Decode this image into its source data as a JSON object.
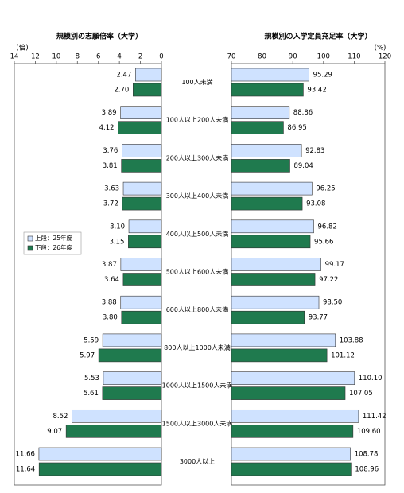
{
  "chart_data": [
    {
      "type": "bar",
      "orientation": "horizontal",
      "title": "規模別の志願倍率（大学）",
      "xlabel": "(倍)",
      "categories": [
        "100人未満",
        "100人以上200人未満",
        "200人以上300人未満",
        "300人以上400人未満",
        "400人以上500人未満",
        "500人以上600人未満",
        "600人以上800人未満",
        "800人以上1000人未満",
        "1000人以上1500人未満",
        "1500人以上3000人未満",
        "3000人以上"
      ],
      "series": [
        {
          "name": "上段：25年度",
          "color": "#cfe2ff",
          "values": [
            2.47,
            3.89,
            3.76,
            3.63,
            3.1,
            3.87,
            3.88,
            5.59,
            5.53,
            8.52,
            11.66
          ],
          "value_labels": [
            "2.47",
            "3.89",
            "3.76",
            "3.63",
            "3.10",
            "3.87",
            "3.88",
            "5.59",
            "5.53",
            "8.52",
            "11.66"
          ]
        },
        {
          "name": "下段：26年度",
          "color": "#1f7a4e",
          "values": [
            2.7,
            4.12,
            3.81,
            3.72,
            3.15,
            3.64,
            3.8,
            5.97,
            5.61,
            9.07,
            11.64
          ],
          "value_labels": [
            "2.70",
            "4.12",
            "3.81",
            "3.72",
            "3.15",
            "3.64",
            "3.80",
            "5.97",
            "5.61",
            "9.07",
            "11.64"
          ]
        }
      ],
      "xlim": [
        14,
        0
      ],
      "xticks": [
        14,
        12,
        10,
        8,
        6,
        4,
        2,
        0
      ],
      "legend": "left"
    },
    {
      "type": "bar",
      "orientation": "horizontal",
      "title": "規模別の入学定員充足率（大学）",
      "xlabel": "(%)",
      "series": [
        {
          "color": "#cfe2ff",
          "values": [
            95.29,
            88.86,
            92.83,
            96.25,
            96.82,
            99.17,
            98.5,
            103.88,
            110.1,
            111.42,
            108.78
          ],
          "value_labels": [
            "95.29",
            "88.86",
            "92.83",
            "96.25",
            "96.82",
            "99.17",
            "98.50",
            "103.88",
            "110.10",
            "111.42",
            "108.78"
          ]
        },
        {
          "color": "#1f7a4e",
          "values": [
            93.42,
            86.95,
            89.04,
            93.08,
            95.66,
            97.22,
            93.77,
            101.12,
            107.05,
            109.6,
            108.96
          ],
          "value_labels": [
            "93.42",
            "86.95",
            "89.04",
            "93.08",
            "95.66",
            "97.22",
            "93.77",
            "101.12",
            "107.05",
            "109.60",
            "108.96"
          ]
        }
      ],
      "xlim": [
        70,
        120
      ],
      "xticks": [
        70,
        80,
        90,
        100,
        110,
        120
      ]
    }
  ]
}
